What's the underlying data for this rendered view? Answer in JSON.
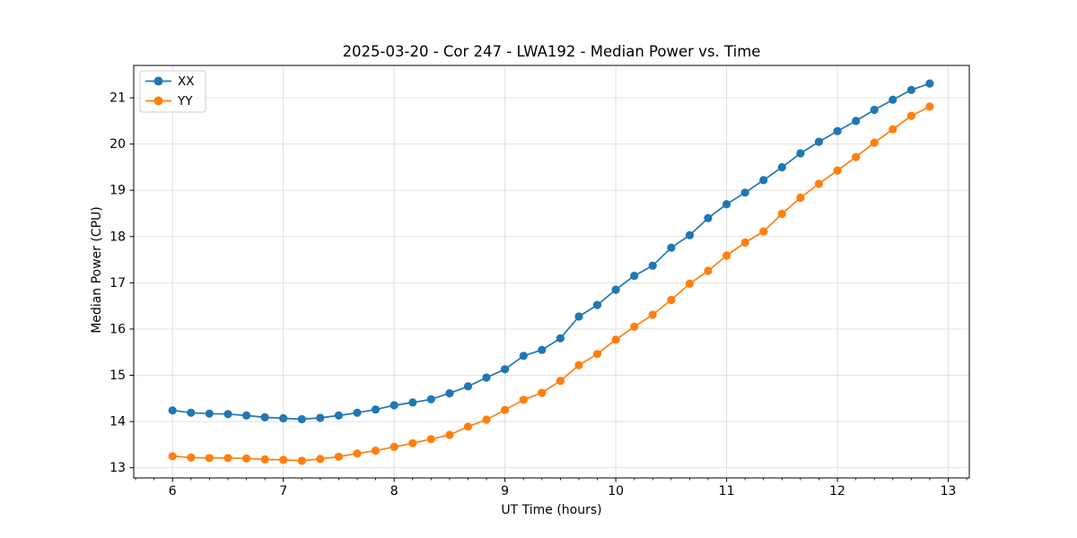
{
  "figure": {
    "background": "#ffffff"
  },
  "chart_data": {
    "type": "line",
    "title": "2025-03-20 - Cor 247 - LWA192 - Median Power vs. Time",
    "xlabel": "UT Time (hours)",
    "ylabel": "Median Power (CPU)",
    "xlim": [
      5.65,
      13.19
    ],
    "ylim": [
      12.78,
      21.7
    ],
    "xticks": [
      6,
      7,
      8,
      9,
      10,
      11,
      12,
      13
    ],
    "yticks": [
      13,
      14,
      15,
      16,
      17,
      18,
      19,
      20,
      21
    ],
    "x_minor_step": 0.166667,
    "grid": "major",
    "grid_color": "#e0e0e0",
    "legend_position": "upper-left",
    "x": [
      6.0,
      6.167,
      6.333,
      6.5,
      6.667,
      6.833,
      7.0,
      7.167,
      7.333,
      7.5,
      7.667,
      7.833,
      8.0,
      8.167,
      8.333,
      8.5,
      8.667,
      8.833,
      9.0,
      9.167,
      9.333,
      9.5,
      9.667,
      9.833,
      10.0,
      10.167,
      10.333,
      10.5,
      10.667,
      10.833,
      11.0,
      11.167,
      11.333,
      11.5,
      11.667,
      11.833,
      12.0,
      12.167,
      12.333,
      12.5,
      12.667,
      12.833
    ],
    "series": [
      {
        "name": "XX",
        "color": "#1f77b4",
        "values": [
          14.24,
          14.19,
          14.17,
          14.16,
          14.13,
          14.09,
          14.07,
          14.05,
          14.08,
          14.13,
          14.19,
          14.26,
          14.35,
          14.41,
          14.48,
          14.61,
          14.76,
          14.95,
          15.13,
          15.42,
          15.55,
          15.8,
          16.27,
          16.52,
          16.85,
          17.15,
          17.37,
          17.76,
          18.03,
          18.4,
          18.7,
          18.95,
          19.22,
          19.5,
          19.8,
          20.05,
          20.28,
          20.5,
          20.74,
          20.96,
          21.17,
          21.31
        ]
      },
      {
        "name": "YY",
        "color": "#ff7f0e",
        "values": [
          13.25,
          13.22,
          13.21,
          13.21,
          13.2,
          13.18,
          13.17,
          13.15,
          13.19,
          13.24,
          13.31,
          13.37,
          13.45,
          13.53,
          13.62,
          13.71,
          13.89,
          14.04,
          14.25,
          14.47,
          14.62,
          14.88,
          15.22,
          15.46,
          15.77,
          16.05,
          16.31,
          16.63,
          16.98,
          17.26,
          17.59,
          17.87,
          18.11,
          18.49,
          18.84,
          19.14,
          19.43,
          19.72,
          20.03,
          20.32,
          20.61,
          20.81
        ]
      }
    ]
  }
}
